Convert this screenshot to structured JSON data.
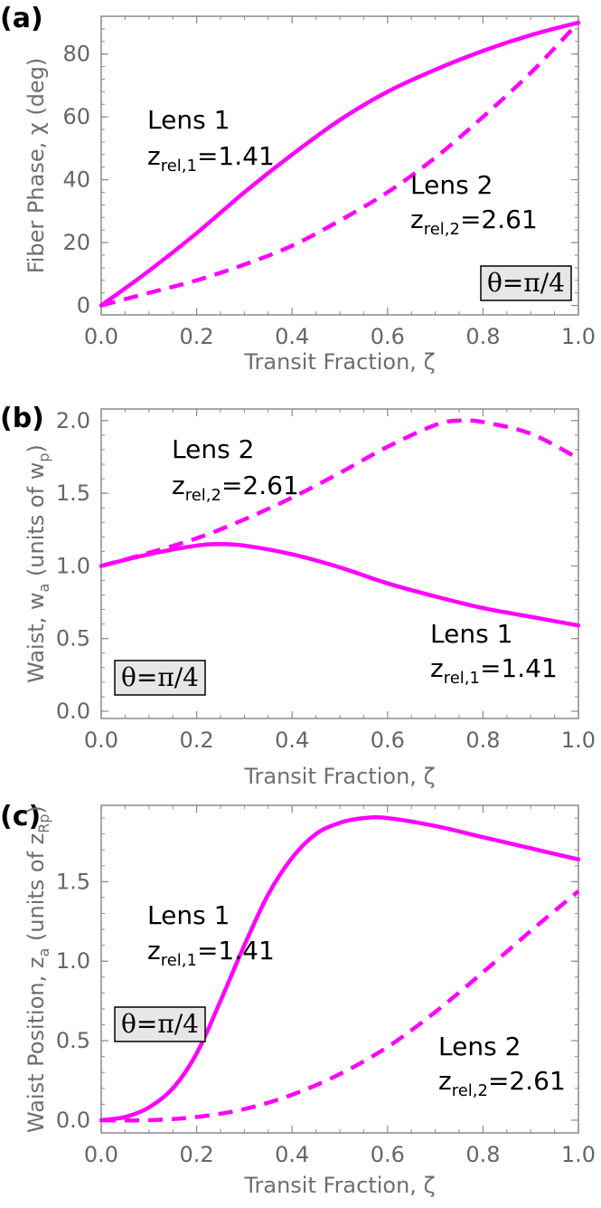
{
  "chart_data": [
    {
      "panel": "(a)",
      "type": "line",
      "xlabel": "Transit Fraction, ζ",
      "ylabel": "Fiber Phase, χ  (deg)",
      "xlim": [
        0,
        1
      ],
      "ylim": [
        -3,
        92
      ],
      "xticks": [
        0.0,
        0.2,
        0.4,
        0.6,
        0.8,
        1.0
      ],
      "xtick_labels": [
        "0.0",
        "0.2",
        "0.4",
        "0.6",
        "0.8",
        "1.0"
      ],
      "yticks": [
        0,
        20,
        40,
        60,
        80
      ],
      "ytick_labels": [
        "0",
        "20",
        "40",
        "60",
        "80"
      ],
      "series": [
        {
          "name": "Lens 1",
          "color": "#ff00ff",
          "dash": "solid",
          "x": [
            0,
            0.1,
            0.2,
            0.3,
            0.4,
            0.5,
            0.6,
            0.7,
            0.8,
            0.9,
            1.0
          ],
          "y": [
            0,
            11,
            23,
            36,
            48,
            59,
            68,
            75,
            81,
            86,
            90
          ]
        },
        {
          "name": "Lens 2",
          "color": "#ff00ff",
          "dash": "dashed",
          "x": [
            0,
            0.1,
            0.2,
            0.3,
            0.4,
            0.5,
            0.6,
            0.7,
            0.8,
            0.9,
            1.0
          ],
          "y": [
            0,
            4,
            8,
            13,
            19,
            27,
            36,
            47,
            60,
            74,
            90
          ]
        }
      ],
      "annotations": [
        {
          "key": "lens1_name",
          "text": "Lens 1"
        },
        {
          "key": "lens1_z_main",
          "text": "z"
        },
        {
          "key": "lens1_z_sub",
          "text": "rel,1"
        },
        {
          "key": "lens1_z_val",
          "text": "=1.41"
        },
        {
          "key": "lens2_name",
          "text": "Lens 2"
        },
        {
          "key": "lens2_z_main",
          "text": "z"
        },
        {
          "key": "lens2_z_sub",
          "text": "rel,2"
        },
        {
          "key": "lens2_z_val",
          "text": "=2.61"
        }
      ],
      "theta_label": "θ=π/4"
    },
    {
      "panel": "(b)",
      "type": "line",
      "xlabel": "Transit Fraction, ζ",
      "ylabel": "Waist, w_a  (units of w_p)",
      "ylabel_parts": [
        "Waist, w",
        "a",
        "  (units of w",
        "p",
        ")"
      ],
      "xlim": [
        0,
        1
      ],
      "ylim": [
        -0.05,
        2.08
      ],
      "xticks": [
        0.0,
        0.2,
        0.4,
        0.6,
        0.8,
        1.0
      ],
      "xtick_labels": [
        "0.0",
        "0.2",
        "0.4",
        "0.6",
        "0.8",
        "1.0"
      ],
      "yticks": [
        0.0,
        0.5,
        1.0,
        1.5,
        2.0
      ],
      "ytick_labels": [
        "0.0",
        "0.5",
        "1.0",
        "1.5",
        "2.0"
      ],
      "series": [
        {
          "name": "Lens 1",
          "color": "#ff00ff",
          "dash": "solid",
          "x": [
            0,
            0.1,
            0.2,
            0.25,
            0.3,
            0.4,
            0.5,
            0.6,
            0.7,
            0.8,
            0.9,
            1.0
          ],
          "y": [
            1.0,
            1.08,
            1.14,
            1.15,
            1.14,
            1.08,
            0.99,
            0.88,
            0.79,
            0.71,
            0.65,
            0.59
          ]
        },
        {
          "name": "Lens 2",
          "color": "#ff00ff",
          "dash": "dashed",
          "x": [
            0,
            0.1,
            0.2,
            0.3,
            0.4,
            0.5,
            0.6,
            0.7,
            0.75,
            0.8,
            0.9,
            1.0
          ],
          "y": [
            1.0,
            1.09,
            1.19,
            1.32,
            1.47,
            1.64,
            1.82,
            1.97,
            2.0,
            1.99,
            1.91,
            1.74
          ]
        }
      ],
      "annotations": [
        {
          "key": "lens2_name",
          "text": "Lens 2"
        },
        {
          "key": "lens2_z_main",
          "text": "z"
        },
        {
          "key": "lens2_z_sub",
          "text": "rel,2"
        },
        {
          "key": "lens2_z_val",
          "text": "=2.61"
        },
        {
          "key": "lens1_name",
          "text": "Lens 1"
        },
        {
          "key": "lens1_z_main",
          "text": "z"
        },
        {
          "key": "lens1_z_sub",
          "text": "rel,1"
        },
        {
          "key": "lens1_z_val",
          "text": "=1.41"
        }
      ],
      "theta_label": "θ=π/4"
    },
    {
      "panel": "(c)",
      "type": "line",
      "xlabel": "Transit Fraction, ζ",
      "ylabel": "Waist Position, z_a  (units of z_Rp)",
      "ylabel_parts": [
        "Waist Position, z",
        "a",
        "  (units of z",
        "Rp",
        ")"
      ],
      "xlim": [
        0,
        1
      ],
      "ylim": [
        -0.08,
        1.98
      ],
      "xticks": [
        0.0,
        0.2,
        0.4,
        0.6,
        0.8,
        1.0
      ],
      "xtick_labels": [
        "0.0",
        "0.2",
        "0.4",
        "0.6",
        "0.8",
        "1.0"
      ],
      "yticks": [
        0.0,
        0.5,
        1.0,
        1.5
      ],
      "ytick_labels": [
        "0.0",
        "0.5",
        "1.0",
        "1.5"
      ],
      "series": [
        {
          "name": "Lens 1",
          "color": "#ff00ff",
          "dash": "solid",
          "x": [
            0,
            0.05,
            0.1,
            0.15,
            0.2,
            0.25,
            0.3,
            0.35,
            0.4,
            0.45,
            0.5,
            0.55,
            0.6,
            0.7,
            0.8,
            0.9,
            1.0
          ],
          "y": [
            0.0,
            0.02,
            0.08,
            0.2,
            0.42,
            0.75,
            1.1,
            1.42,
            1.65,
            1.8,
            1.87,
            1.9,
            1.9,
            1.85,
            1.78,
            1.71,
            1.64
          ]
        },
        {
          "name": "Lens 2",
          "color": "#ff00ff",
          "dash": "dashed",
          "x": [
            0,
            0.1,
            0.2,
            0.3,
            0.4,
            0.5,
            0.6,
            0.7,
            0.8,
            0.9,
            1.0
          ],
          "y": [
            0.0,
            0.0,
            0.02,
            0.07,
            0.16,
            0.29,
            0.46,
            0.68,
            0.93,
            1.19,
            1.44
          ]
        }
      ],
      "annotations": [
        {
          "key": "lens1_name",
          "text": "Lens 1"
        },
        {
          "key": "lens1_z_main",
          "text": "z"
        },
        {
          "key": "lens1_z_sub",
          "text": "rel,1"
        },
        {
          "key": "lens1_z_val",
          "text": "=1.41"
        },
        {
          "key": "lens2_name",
          "text": "Lens 2"
        },
        {
          "key": "lens2_z_main",
          "text": "z"
        },
        {
          "key": "lens2_z_sub",
          "text": "rel,2"
        },
        {
          "key": "lens2_z_val",
          "text": "=2.61"
        }
      ],
      "theta_label": "θ=π/4"
    }
  ]
}
